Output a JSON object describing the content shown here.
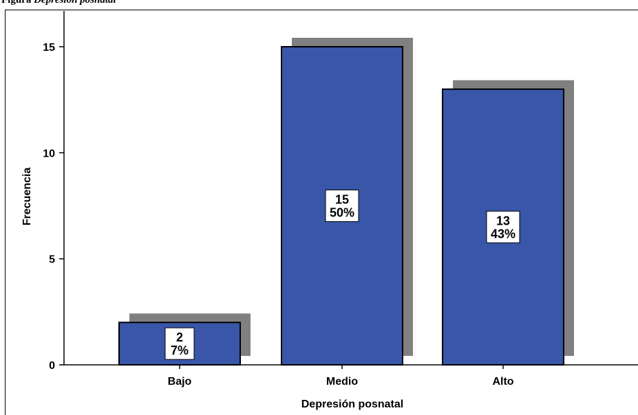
{
  "caption": {
    "label": "Figura",
    "text": "Depresión posnatal"
  },
  "chart_data": {
    "type": "bar",
    "title": "",
    "xlabel": "Depresión posnatal",
    "ylabel": "Frecuencia",
    "categories": [
      "Bajo",
      "Medio",
      "Alto"
    ],
    "values": [
      2,
      15,
      13
    ],
    "percent_labels": [
      "7%",
      "50%",
      "43%"
    ],
    "count_labels": [
      "2",
      "15",
      "13"
    ],
    "ylim": [
      0,
      16.5
    ],
    "yticks": [
      0,
      5,
      10,
      15
    ],
    "ytick_labels": [
      "0",
      "5",
      "10",
      "15"
    ],
    "grid": false,
    "legend": "none",
    "colors": {
      "bar": "#3a56a8",
      "shadow": "#808080",
      "outline": "#000000",
      "label_box": "#ffffff"
    }
  }
}
